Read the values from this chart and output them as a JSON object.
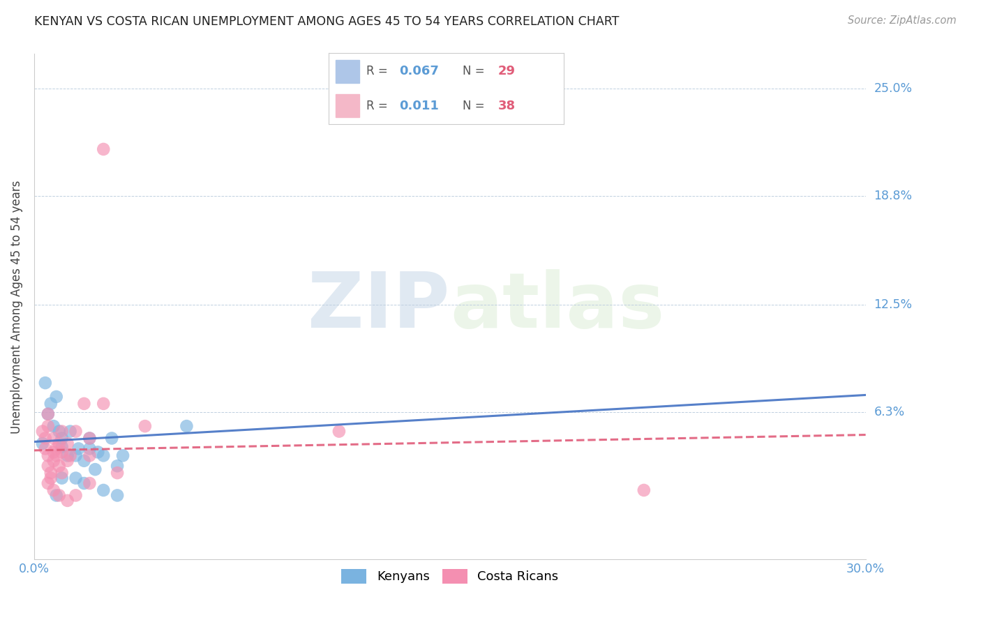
{
  "title": "KENYAN VS COSTA RICAN UNEMPLOYMENT AMONG AGES 45 TO 54 YEARS CORRELATION CHART",
  "source": "Source: ZipAtlas.com",
  "ylabel": "Unemployment Among Ages 45 to 54 years",
  "xlim": [
    0.0,
    0.3
  ],
  "ylim": [
    -0.022,
    0.27
  ],
  "yticks": [
    0.0,
    0.063,
    0.125,
    0.188,
    0.25
  ],
  "ytick_labels": [
    "",
    "6.3%",
    "12.5%",
    "18.8%",
    "25.0%"
  ],
  "xtick_labels": [
    "0.0%",
    "30.0%"
  ],
  "xticks": [
    0.0,
    0.3
  ],
  "kenyan_color": "#7ab3e0",
  "costarican_color": "#f48fb1",
  "kenyan_line_color": "#4472c4",
  "costarican_line_color": "#e05c7a",
  "kenyan_line": [
    [
      0.0,
      0.046
    ],
    [
      0.3,
      0.073
    ]
  ],
  "costarican_line": [
    [
      0.0,
      0.041
    ],
    [
      0.3,
      0.05
    ]
  ],
  "kenyan_points": [
    [
      0.003,
      0.045
    ],
    [
      0.005,
      0.062
    ],
    [
      0.007,
      0.055
    ],
    [
      0.008,
      0.072
    ],
    [
      0.009,
      0.052
    ],
    [
      0.01,
      0.048
    ],
    [
      0.01,
      0.043
    ],
    [
      0.012,
      0.038
    ],
    [
      0.013,
      0.052
    ],
    [
      0.015,
      0.038
    ],
    [
      0.016,
      0.042
    ],
    [
      0.018,
      0.035
    ],
    [
      0.02,
      0.048
    ],
    [
      0.02,
      0.042
    ],
    [
      0.022,
      0.03
    ],
    [
      0.023,
      0.04
    ],
    [
      0.025,
      0.038
    ],
    [
      0.028,
      0.048
    ],
    [
      0.03,
      0.032
    ],
    [
      0.032,
      0.038
    ],
    [
      0.004,
      0.08
    ],
    [
      0.006,
      0.068
    ],
    [
      0.01,
      0.025
    ],
    [
      0.015,
      0.025
    ],
    [
      0.018,
      0.022
    ],
    [
      0.025,
      0.018
    ],
    [
      0.008,
      0.015
    ],
    [
      0.03,
      0.015
    ],
    [
      0.055,
      0.055
    ]
  ],
  "costarican_points": [
    [
      0.003,
      0.052
    ],
    [
      0.004,
      0.048
    ],
    [
      0.004,
      0.042
    ],
    [
      0.005,
      0.062
    ],
    [
      0.005,
      0.055
    ],
    [
      0.005,
      0.038
    ],
    [
      0.005,
      0.032
    ],
    [
      0.006,
      0.028
    ],
    [
      0.006,
      0.025
    ],
    [
      0.007,
      0.048
    ],
    [
      0.007,
      0.04
    ],
    [
      0.007,
      0.035
    ],
    [
      0.008,
      0.042
    ],
    [
      0.008,
      0.038
    ],
    [
      0.009,
      0.045
    ],
    [
      0.009,
      0.032
    ],
    [
      0.01,
      0.052
    ],
    [
      0.01,
      0.04
    ],
    [
      0.01,
      0.028
    ],
    [
      0.012,
      0.045
    ],
    [
      0.012,
      0.035
    ],
    [
      0.013,
      0.038
    ],
    [
      0.015,
      0.052
    ],
    [
      0.015,
      0.015
    ],
    [
      0.018,
      0.068
    ],
    [
      0.02,
      0.048
    ],
    [
      0.02,
      0.038
    ],
    [
      0.025,
      0.068
    ],
    [
      0.04,
      0.055
    ],
    [
      0.025,
      0.215
    ],
    [
      0.005,
      0.022
    ],
    [
      0.007,
      0.018
    ],
    [
      0.009,
      0.015
    ],
    [
      0.012,
      0.012
    ],
    [
      0.02,
      0.022
    ],
    [
      0.03,
      0.028
    ],
    [
      0.22,
      0.018
    ],
    [
      0.11,
      0.052
    ]
  ]
}
